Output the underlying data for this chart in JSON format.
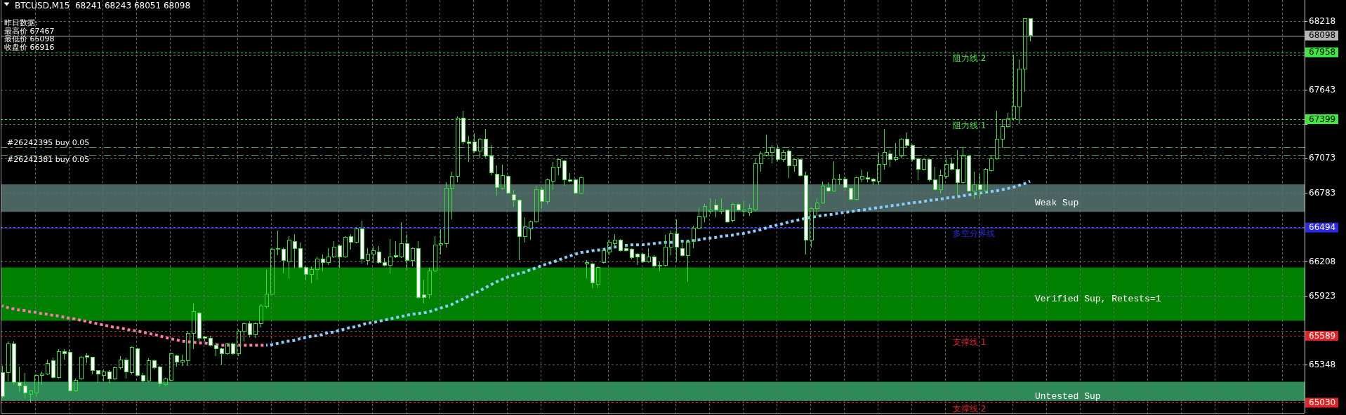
{
  "chart_data": {
    "type": "candlestick",
    "title": "BTCUSD,M15  68241 68243 68051 68098",
    "annotations": [
      "昨日数据:",
      "最高价 67467",
      "最低价 65098",
      "收盘价 66916",
      "68098",
      "67958",
      "67399",
      "66494",
      "65589",
      "65030"
    ],
    "categories": [
      null,
      null,
      null,
      null,
      null,
      null,
      null,
      null,
      null,
      null,
      null,
      null,
      null,
      null,
      null,
      null,
      null,
      null,
      null,
      null,
      null,
      null,
      null,
      null,
      null,
      null,
      null,
      null,
      null,
      null,
      null,
      null,
      null,
      null,
      null,
      null,
      null,
      null,
      null,
      null,
      null,
      null,
      null,
      null,
      null,
      null,
      null,
      null,
      null,
      null,
      null,
      null,
      null,
      null,
      null,
      null,
      null,
      null,
      null,
      null,
      null,
      null,
      null,
      null,
      null,
      null,
      null,
      null,
      null,
      null,
      null,
      null,
      null,
      null,
      null,
      null,
      null,
      null,
      null,
      null,
      null,
      null,
      null,
      null,
      null,
      null,
      null,
      null,
      null,
      null,
      null,
      null,
      null,
      null,
      null,
      null,
      null,
      null,
      null,
      null,
      null,
      null,
      null,
      null,
      null,
      null,
      null,
      null,
      null,
      null,
      null,
      null,
      null,
      null,
      null,
      null,
      null,
      null,
      null,
      null,
      null,
      null,
      null,
      null,
      null,
      null,
      null,
      null,
      null,
      null,
      null,
      null,
      null,
      null,
      null,
      null,
      null,
      null,
      null,
      null,
      null,
      null,
      null,
      null,
      null,
      null,
      null,
      null,
      null,
      null,
      null,
      null,
      null,
      null,
      null,
      null,
      null,
      null,
      null,
      null,
      null,
      null,
      null,
      null,
      null,
      null,
      null,
      null,
      null,
      null,
      null,
      null,
      null,
      null,
      null,
      null,
      null,
      null,
      null,
      null,
      null,
      null,
      null,
      null
    ],
    "ohlc": [
      [
        65280,
        65340,
        65070,
        65080
      ],
      [
        65280,
        65540,
        65210,
        65520
      ],
      [
        65520,
        65540,
        65180,
        65200
      ],
      [
        65200,
        65330,
        65120,
        65170
      ],
      [
        65170,
        65280,
        65070,
        65110
      ],
      [
        65100,
        65140,
        65030,
        65130
      ],
      [
        65110,
        65270,
        65080,
        65260
      ],
      [
        65260,
        65290,
        65180,
        65270
      ],
      [
        65270,
        65390,
        65260,
        65360
      ],
      [
        65380,
        65410,
        65230,
        65240
      ],
      [
        65240,
        65480,
        65230,
        65460
      ],
      [
        65460,
        65480,
        65390,
        65440
      ],
      [
        65450,
        65470,
        65120,
        65130
      ],
      [
        65130,
        65230,
        65120,
        65220
      ],
      [
        65230,
        65420,
        65220,
        65410
      ],
      [
        65420,
        65440,
        65360,
        65410
      ],
      [
        65410,
        65410,
        65270,
        65300
      ],
      [
        65300,
        65300,
        65190,
        65270
      ],
      [
        65260,
        65310,
        65210,
        65290
      ],
      [
        65290,
        65300,
        65190,
        65230
      ],
      [
        65230,
        65330,
        65220,
        65320
      ],
      [
        65320,
        65420,
        65310,
        65390
      ],
      [
        65390,
        65410,
        65230,
        65290
      ],
      [
        65280,
        65500,
        65270,
        65490
      ],
      [
        65480,
        65490,
        65250,
        65260
      ],
      [
        65260,
        65280,
        65200,
        65210
      ],
      [
        65210,
        65400,
        65200,
        65380
      ],
      [
        65380,
        65390,
        65310,
        65320
      ],
      [
        65330,
        65340,
        65170,
        65190
      ],
      [
        65180,
        65240,
        65170,
        65230
      ],
      [
        65220,
        65450,
        65210,
        65440
      ],
      [
        65420,
        65430,
        65330,
        65370
      ],
      [
        65370,
        65430,
        65340,
        65380
      ],
      [
        65380,
        65630,
        65340,
        65610
      ],
      [
        65610,
        65860,
        65480,
        65790
      ],
      [
        65780,
        65790,
        65540,
        65570
      ],
      [
        65580,
        65590,
        65540,
        65570
      ],
      [
        65570,
        65590,
        65500,
        65510
      ],
      [
        65510,
        65530,
        65420,
        65480
      ],
      [
        65480,
        65490,
        65350,
        65440
      ],
      [
        65440,
        65530,
        65430,
        65520
      ],
      [
        65520,
        65530,
        65430,
        65440
      ],
      [
        65440,
        65640,
        65420,
        65630
      ],
      [
        65630,
        65700,
        65540,
        65690
      ],
      [
        65690,
        65710,
        65580,
        65600
      ],
      [
        65600,
        65700,
        65570,
        65690
      ],
      [
        65690,
        65850,
        65660,
        65840
      ],
      [
        65830,
        66140,
        65820,
        65940
      ],
      [
        65940,
        66330,
        65930,
        66310
      ],
      [
        66310,
        66470,
        66260,
        66320
      ],
      [
        66310,
        66330,
        66110,
        66220
      ],
      [
        66210,
        66420,
        66070,
        66390
      ],
      [
        66380,
        66440,
        66160,
        66320
      ],
      [
        66320,
        66370,
        66150,
        66160
      ],
      [
        66160,
        66170,
        66050,
        66100
      ],
      [
        66100,
        66170,
        66030,
        66140
      ],
      [
        66140,
        66250,
        66060,
        66230
      ],
      [
        66230,
        66270,
        66130,
        66200
      ],
      [
        66200,
        66320,
        66180,
        66250
      ],
      [
        66250,
        66380,
        66240,
        66330
      ],
      [
        66340,
        66350,
        66160,
        66250
      ],
      [
        66250,
        66420,
        66240,
        66410
      ],
      [
        66420,
        66440,
        66310,
        66370
      ],
      [
        66370,
        66500,
        66360,
        66480
      ],
      [
        66480,
        66550,
        66190,
        66230
      ],
      [
        66220,
        66320,
        66180,
        66270
      ],
      [
        66270,
        66340,
        66200,
        66300
      ],
      [
        66290,
        66340,
        66190,
        66200
      ],
      [
        66200,
        66240,
        66170,
        66180
      ],
      [
        66180,
        66400,
        66110,
        66250
      ],
      [
        66260,
        66380,
        66240,
        66250
      ],
      [
        66250,
        66540,
        66240,
        66360
      ],
      [
        66360,
        66440,
        66140,
        66220
      ],
      [
        66220,
        66330,
        66170,
        66320
      ],
      [
        66320,
        66380,
        65900,
        65910
      ],
      [
        65930,
        66060,
        65860,
        65910
      ],
      [
        65930,
        66160,
        65900,
        66130
      ],
      [
        66130,
        66420,
        66120,
        66350
      ],
      [
        66350,
        66480,
        66270,
        66360
      ],
      [
        66360,
        66870,
        66330,
        66820
      ],
      [
        66820,
        66960,
        66560,
        66920
      ],
      [
        66920,
        67420,
        66870,
        67410
      ],
      [
        67410,
        67470,
        67190,
        67210
      ],
      [
        67210,
        67260,
        67040,
        67200
      ],
      [
        67210,
        67280,
        67120,
        67130
      ],
      [
        67130,
        67240,
        67070,
        67230
      ],
      [
        67230,
        67320,
        67080,
        67090
      ],
      [
        67090,
        67180,
        66930,
        66950
      ],
      [
        66940,
        67010,
        66760,
        66830
      ],
      [
        66820,
        67020,
        66810,
        66930
      ],
      [
        66920,
        66930,
        66770,
        66780
      ],
      [
        66770,
        66810,
        66670,
        66720
      ],
      [
        66720,
        66730,
        66220,
        66420
      ],
      [
        66420,
        66580,
        66370,
        66500
      ],
      [
        66480,
        66550,
        66390,
        66540
      ],
      [
        66540,
        66840,
        66530,
        66810
      ],
      [
        66810,
        66830,
        66650,
        66710
      ],
      [
        66710,
        66900,
        66690,
        66890
      ],
      [
        66880,
        67040,
        66810,
        67000
      ],
      [
        67000,
        67070,
        66930,
        67060
      ],
      [
        67050,
        67060,
        66840,
        66890
      ],
      [
        66890,
        66950,
        66870,
        66880
      ],
      [
        66890,
        66900,
        66770,
        66780
      ],
      [
        66780,
        66920,
        66770,
        66910
      ],
      [
        66190,
        66220,
        66070,
        66200
      ],
      [
        66190,
        66200,
        65990,
        66030
      ],
      [
        66020,
        66170,
        65990,
        66160
      ],
      [
        66200,
        66310,
        66190,
        66300
      ],
      [
        66290,
        66390,
        66260,
        66370
      ],
      [
        66360,
        66440,
        66330,
        66390
      ],
      [
        66390,
        66400,
        66290,
        66300
      ],
      [
        66320,
        66350,
        66290,
        66300
      ],
      [
        66310,
        66320,
        66230,
        66240
      ],
      [
        66270,
        66280,
        66180,
        66250
      ],
      [
        66270,
        66280,
        66200,
        66210
      ],
      [
        66210,
        66320,
        66200,
        66250
      ],
      [
        66250,
        66260,
        66160,
        66170
      ],
      [
        66170,
        66210,
        66130,
        66180
      ],
      [
        66180,
        66430,
        66170,
        66330
      ],
      [
        66330,
        66470,
        66260,
        66440
      ],
      [
        66440,
        66560,
        66210,
        66330
      ],
      [
        66320,
        66380,
        66250,
        66260
      ],
      [
        66260,
        66390,
        66040,
        66380
      ],
      [
        66380,
        66510,
        66320,
        66490
      ],
      [
        66490,
        66660,
        66480,
        66590
      ],
      [
        66580,
        66690,
        66540,
        66670
      ],
      [
        66630,
        66740,
        66610,
        66640
      ],
      [
        66680,
        66730,
        66580,
        66640
      ],
      [
        66630,
        66740,
        66610,
        66640
      ],
      [
        66640,
        66650,
        66530,
        66540
      ],
      [
        66550,
        66700,
        66540,
        66690
      ],
      [
        66690,
        66700,
        66630,
        66640
      ],
      [
        66630,
        66720,
        66590,
        66640
      ],
      [
        66620,
        66690,
        66590,
        66650
      ],
      [
        66640,
        67070,
        66630,
        67030
      ],
      [
        67030,
        67130,
        66960,
        67110
      ],
      [
        67100,
        67270,
        67090,
        67120
      ],
      [
        67120,
        67180,
        67030,
        67160
      ],
      [
        67150,
        67180,
        67050,
        67060
      ],
      [
        67060,
        67140,
        67040,
        67120
      ],
      [
        67130,
        67150,
        66910,
        67010
      ],
      [
        67010,
        67070,
        66960,
        67060
      ],
      [
        67060,
        67070,
        66920,
        66930
      ],
      [
        66930,
        66960,
        66270,
        66390
      ],
      [
        66390,
        66660,
        66330,
        66650
      ],
      [
        66650,
        66740,
        66590,
        66700
      ],
      [
        66700,
        66880,
        66690,
        66840
      ],
      [
        66830,
        66870,
        66790,
        66800
      ],
      [
        66800,
        67050,
        66790,
        66900
      ],
      [
        66890,
        66940,
        66850,
        66900
      ],
      [
        66900,
        66920,
        66800,
        66830
      ],
      [
        66820,
        66830,
        66720,
        66730
      ],
      [
        66730,
        66920,
        66720,
        66910
      ],
      [
        66900,
        66980,
        66870,
        66920
      ],
      [
        66910,
        66960,
        66870,
        66900
      ],
      [
        66900,
        66910,
        66850,
        66880
      ],
      [
        66880,
        67120,
        66850,
        67020
      ],
      [
        67020,
        67320,
        66980,
        67120
      ],
      [
        67110,
        67140,
        67000,
        67060
      ],
      [
        67060,
        67200,
        67050,
        67080
      ],
      [
        67090,
        67240,
        67070,
        67230
      ],
      [
        67230,
        67290,
        67160,
        67180
      ],
      [
        67180,
        67190,
        67050,
        67060
      ],
      [
        67070,
        67080,
        66890,
        66980
      ],
      [
        66980,
        67070,
        66970,
        67060
      ],
      [
        67060,
        67070,
        66880,
        66890
      ],
      [
        66890,
        67000,
        66800,
        66810
      ],
      [
        66810,
        66980,
        66780,
        66930
      ],
      [
        66920,
        67080,
        66900,
        67020
      ],
      [
        67030,
        67080,
        66970,
        66980
      ],
      [
        66980,
        67140,
        66760,
        66870
      ],
      [
        66870,
        67160,
        66860,
        67090
      ],
      [
        67090,
        67100,
        66790,
        66800
      ],
      [
        66800,
        66960,
        66730,
        66850
      ],
      [
        66850,
        66940,
        66740,
        66810
      ],
      [
        66800,
        66990,
        66790,
        66980
      ],
      [
        66970,
        67100,
        66960,
        67070
      ],
      [
        67070,
        67470,
        67060,
        67230
      ],
      [
        67230,
        67400,
        67160,
        67340
      ],
      [
        67340,
        67450,
        67330,
        67400
      ],
      [
        67400,
        67940,
        67390,
        67510
      ],
      [
        67500,
        67900,
        67360,
        67820
      ],
      [
        67820,
        68240,
        67630,
        68240
      ],
      [
        68241,
        68243,
        68051,
        68098
      ]
    ],
    "color": "#33dd33",
    "series": [
      {
        "type": "line",
        "color": "#ff7aa8",
        "line_style": "dotted",
        "values": [
          65840,
          65825,
          65815,
          65805,
          65800,
          65790,
          65785,
          65775,
          65770,
          65760,
          65755,
          65745,
          65735,
          65730,
          65720,
          65710,
          65700,
          65690,
          65680,
          65670,
          65660,
          65655,
          65645,
          65635,
          65630,
          65620,
          65610,
          65600,
          65590,
          65575,
          65565,
          65555,
          65545,
          65540,
          65535,
          65530,
          65530,
          65520,
          65515,
          65510,
          65510,
          65510,
          65510,
          65510,
          65510,
          65510,
          65510,
          65510,
          null,
          null,
          null,
          null,
          null,
          null,
          null,
          null,
          null,
          null,
          null,
          null,
          null,
          null,
          null,
          null,
          null,
          null,
          null,
          null,
          null,
          null,
          null,
          null,
          null,
          null,
          null,
          null,
          null,
          null,
          null,
          null,
          null,
          null,
          null,
          null,
          null,
          null,
          null,
          null,
          null,
          null,
          null,
          null,
          null,
          null,
          null,
          null,
          null,
          null,
          null,
          null,
          null,
          null,
          null,
          null,
          null,
          null,
          null,
          null,
          null,
          null,
          null,
          null,
          null,
          null,
          null,
          null,
          null,
          null,
          null,
          null,
          null,
          null,
          null,
          null,
          null,
          null,
          null,
          null,
          null,
          null,
          null,
          null,
          null,
          null,
          null,
          null,
          null,
          null,
          null,
          null,
          null,
          null,
          null,
          null,
          null,
          null,
          null,
          null,
          null,
          null,
          null,
          null,
          null,
          null,
          null,
          null,
          null,
          null,
          null,
          null,
          null,
          null,
          null,
          null,
          null,
          null,
          null,
          null,
          null,
          null,
          null,
          null,
          null,
          null,
          null,
          null,
          null,
          null,
          null,
          null,
          null,
          null,
          null,
          null
        ]
      },
      {
        "type": "line",
        "color": "#87cefa",
        "line_style": "dotted",
        "values": [
          null,
          null,
          null,
          null,
          null,
          null,
          null,
          null,
          null,
          null,
          null,
          null,
          null,
          null,
          null,
          null,
          null,
          null,
          null,
          null,
          null,
          null,
          null,
          null,
          null,
          null,
          null,
          null,
          null,
          null,
          null,
          null,
          null,
          null,
          null,
          null,
          null,
          null,
          null,
          null,
          null,
          null,
          null,
          null,
          null,
          null,
          null,
          65510,
          65515,
          65525,
          65535,
          65545,
          65550,
          65565,
          65575,
          65585,
          65590,
          65600,
          65615,
          65620,
          65635,
          65645,
          65660,
          65665,
          65680,
          65695,
          65700,
          65710,
          65720,
          65730,
          65740,
          65750,
          65760,
          65770,
          65775,
          65780,
          65790,
          65805,
          65820,
          65835,
          65850,
          65875,
          65895,
          65920,
          65940,
          65965,
          65990,
          66015,
          66040,
          66060,
          66080,
          66095,
          66110,
          66120,
          66140,
          66155,
          66175,
          66190,
          66205,
          66220,
          66240,
          66255,
          66270,
          66285,
          66290,
          66300,
          66305,
          66310,
          66320,
          66330,
          66340,
          66345,
          66350,
          66350,
          66350,
          66355,
          66360,
          66365,
          66370,
          66370,
          66375,
          66380,
          66380,
          66385,
          66390,
          66400,
          66405,
          66410,
          66420,
          66425,
          66430,
          66440,
          66445,
          66455,
          66465,
          66475,
          66490,
          66505,
          66515,
          66525,
          66540,
          66550,
          66560,
          66570,
          66580,
          66585,
          66595,
          66600,
          66605,
          66615,
          66620,
          66625,
          66635,
          66640,
          66645,
          66655,
          66660,
          66665,
          66675,
          66680,
          66685,
          66695,
          66700,
          66705,
          66710,
          66720,
          66725,
          66730,
          66740,
          66745,
          66750,
          66760,
          66765,
          66775,
          66780,
          66790,
          66795,
          66800,
          66810,
          66820,
          66830,
          66845,
          66860,
          66880
        ]
      }
    ],
    "ylim": [
      64945,
      68395
    ],
    "yticks": [
      68218,
      {
        "value": 67933,
        "label": null
      },
      67643,
      {
        "value": 67358,
        "label": null
      },
      67073,
      66783,
      {
        "value": 66498,
        "label": null
      },
      66208,
      65923,
      {
        "value": 65633,
        "label": null
      },
      65348,
      {
        "value": 65063,
        "label": null
      }
    ],
    "grid": true,
    "ref_lines": [
      {
        "axis": "y",
        "value": 68098,
        "color": "#b4b4b4",
        "line_style": "solid"
      },
      {
        "axis": "y",
        "value": 67958,
        "label": "阻力线 2",
        "color": "#3ee63e",
        "line_style": "dotted"
      },
      {
        "axis": "y",
        "value": 67399,
        "label": "阻力线 1",
        "color": "#3ee63e",
        "line_style": "dotted"
      },
      {
        "axis": "y",
        "value": 67165,
        "label": "#26242395 buy 0.05",
        "color": "#4f9a4f",
        "line_style": "dashed"
      },
      {
        "axis": "y",
        "value": 67100,
        "label": "#26242381 buy 0.05",
        "color": "#4f9a4f",
        "line_style": "dashed"
      },
      {
        "axis": "y",
        "value": 66494,
        "label": "多空分界线",
        "color": "#2a2ae6",
        "line_style": "solid"
      },
      {
        "axis": "y",
        "value": 65589,
        "label": "支撑线 1",
        "color": "#e02424",
        "line_style": "dotted"
      },
      {
        "axis": "y",
        "value": 65030,
        "label": "支撑线 2",
        "color": "#e02424",
        "line_style": "dotted"
      }
    ],
    "bands": [
      {
        "axis": "y",
        "from": 66625,
        "to": 66855,
        "label": "Weak Sup",
        "color": "#4a6462"
      },
      {
        "axis": "y",
        "from": 65715,
        "to": 66160,
        "label": "Verified Sup, Retests=1",
        "color": "#008000"
      },
      {
        "axis": "y",
        "from": 65045,
        "to": 65205,
        "label": "Untested Sup",
        "color": "#2e8b57"
      }
    ]
  }
}
